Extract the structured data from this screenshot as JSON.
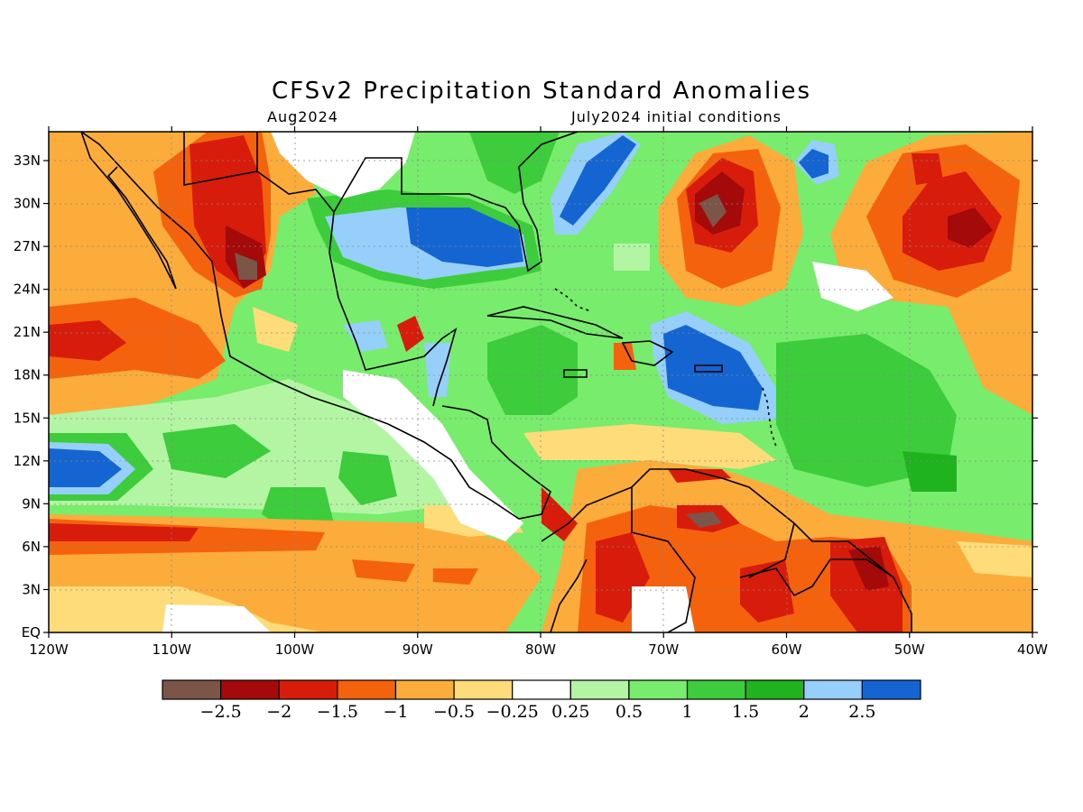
{
  "title": "CFSv2 Precipitation Standard Anomalies",
  "subtitle_left": "Aug2024",
  "subtitle_right": "July2024 initial conditions",
  "lat_labels": [
    "33N",
    "30N",
    "27N",
    "24N",
    "21N",
    "18N",
    "15N",
    "12N",
    "9N",
    "6N",
    "3N",
    "EQ"
  ],
  "lon_labels": [
    "120W",
    "110W",
    "100W",
    "90W",
    "80W",
    "70W",
    "60W",
    "50W",
    "40W"
  ],
  "colorbar": {
    "colors": [
      "#7a5548",
      "#a40a0a",
      "#d81c0c",
      "#f4620e",
      "#fbac3a",
      "#fedc7a",
      "#ffffff",
      "#b4f5a4",
      "#78ec6c",
      "#3ccc3c",
      "#1fb41e",
      "#96d0fa",
      "#1464d2"
    ],
    "labels": [
      "−2.5",
      "−2",
      "−1.5",
      "−1",
      "−0.5",
      "−0.25",
      "0.25",
      "0.5",
      "1",
      "1.5",
      "2",
      "2.5"
    ]
  }
}
